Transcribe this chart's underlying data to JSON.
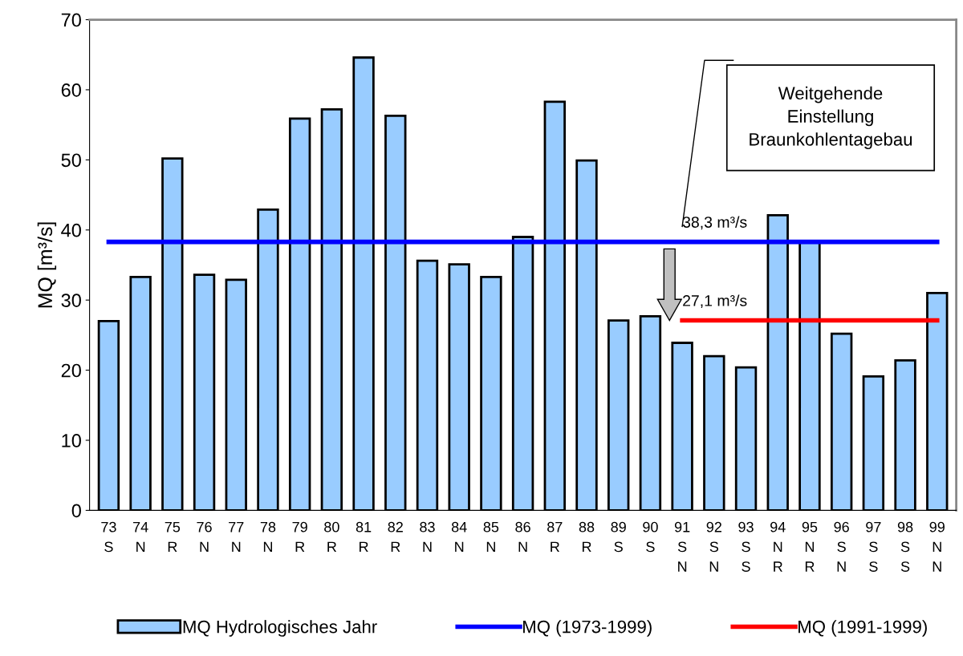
{
  "chart_data": {
    "type": "bar",
    "ylabel": "MQ [m³/s]",
    "categories": [
      "73\nS",
      "74\nN",
      "75\nR",
      "76\nN",
      "77\nN",
      "78\nN",
      "79\nR",
      "80\nR",
      "81\nR",
      "82\nR",
      "83\nN",
      "84\nN",
      "85\nN",
      "86\nN",
      "87\nR",
      "88\nR",
      "89\nS",
      "90\nS",
      "91\nS\nN",
      "92\nS\nN",
      "93\nS\nS",
      "94\nN\nR",
      "95\nN\nR",
      "96\nS\nN",
      "97\nS\nS",
      "98\nS\nS",
      "99\nN\nN"
    ],
    "series": [
      {
        "name": "MQ Hydrologisches Jahr",
        "color": "#99ccff",
        "values": [
          27.0,
          33.3,
          50.2,
          33.6,
          32.9,
          42.9,
          55.9,
          57.2,
          64.6,
          56.3,
          35.6,
          35.1,
          33.3,
          39.0,
          58.3,
          49.9,
          27.1,
          27.7,
          23.9,
          22.0,
          20.4,
          42.1,
          38.2,
          25.2,
          19.1,
          21.4,
          31.0
        ]
      },
      {
        "name": "MQ (1973-1999)",
        "type": "line",
        "color": "#0000ff",
        "values": [
          38.3,
          38.3,
          38.3,
          38.3,
          38.3,
          38.3,
          38.3,
          38.3,
          38.3,
          38.3,
          38.3,
          38.3,
          38.3,
          38.3,
          38.3,
          38.3,
          38.3,
          38.3,
          38.3,
          38.3,
          38.3,
          38.3,
          38.3,
          38.3,
          38.3,
          38.3,
          38.3
        ]
      },
      {
        "name": "MQ (1991-1999)",
        "type": "line",
        "color": "#ff0000",
        "values": [
          null,
          null,
          null,
          null,
          null,
          null,
          null,
          null,
          null,
          null,
          null,
          null,
          null,
          null,
          null,
          null,
          null,
          null,
          27.1,
          27.1,
          27.1,
          27.1,
          27.1,
          27.1,
          27.1,
          27.1,
          27.1
        ]
      }
    ],
    "ylim": [
      0,
      70
    ],
    "yticks": [
      0,
      10,
      20,
      30,
      40,
      50,
      60,
      70
    ],
    "grid": false,
    "legend": "bottom",
    "marker": "none",
    "annotations": [
      {
        "text": "38,3 m³/s",
        "x": "91\nS\nN",
        "y": 38.3
      },
      {
        "text": "27,1 m³/s",
        "x": "91\nS\nN",
        "y": 27.1
      },
      "Weitgehende\nEinstellung\nBraunkohlentagebau"
    ]
  }
}
